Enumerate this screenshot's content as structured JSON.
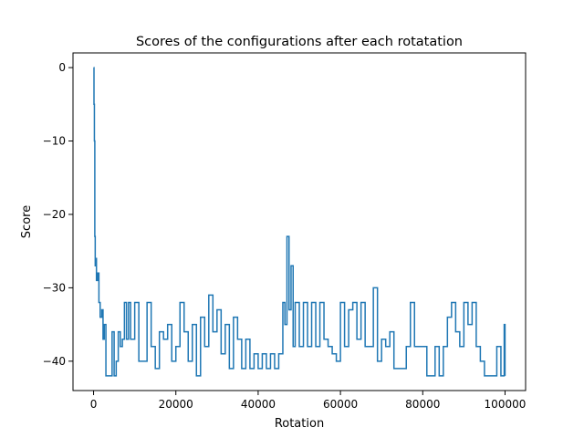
{
  "chart_data": {
    "type": "line",
    "title": "Scores of the configurations after each rotatation",
    "xlabel": "Rotation",
    "ylabel": "Score",
    "xlim": [
      -5000,
      105000
    ],
    "ylim": [
      -44,
      2
    ],
    "xticks": [
      0,
      20000,
      40000,
      60000,
      80000,
      100000
    ],
    "yticks": [
      0,
      -10,
      -20,
      -30,
      -40
    ],
    "grid": false,
    "legend": "none",
    "series": [
      {
        "color": "#1f77b4",
        "x": [
          0,
          100,
          200,
          300,
          400,
          500,
          700,
          1000,
          1300,
          1600,
          2000,
          2300,
          2600,
          3000,
          3500,
          4000,
          4500,
          5000,
          5500,
          6000,
          6500,
          7000,
          7500,
          8000,
          8500,
          9000,
          9500,
          10000,
          11000,
          12000,
          13000,
          14000,
          15000,
          16000,
          17000,
          18000,
          19000,
          20000,
          21000,
          22000,
          23000,
          24000,
          25000,
          26000,
          27000,
          28000,
          29000,
          30000,
          31000,
          32000,
          33000,
          34000,
          35000,
          36000,
          37000,
          38000,
          39000,
          40000,
          41000,
          42000,
          43000,
          44000,
          45000,
          46000,
          46500,
          47000,
          47500,
          48000,
          48500,
          49000,
          50000,
          51000,
          52000,
          53000,
          54000,
          55000,
          56000,
          57000,
          58000,
          59000,
          60000,
          61000,
          62000,
          63000,
          64000,
          65000,
          66000,
          67000,
          68000,
          69000,
          70000,
          71000,
          72000,
          73000,
          74000,
          75000,
          76000,
          77000,
          78000,
          79000,
          80000,
          81000,
          82000,
          83000,
          84000,
          85000,
          86000,
          87000,
          88000,
          89000,
          90000,
          91000,
          92000,
          93000,
          94000,
          95000,
          96000,
          97000,
          98000,
          99000,
          99800,
          100000
        ],
        "y": [
          0,
          -5,
          -10,
          -23,
          -27,
          -26,
          -29,
          -28,
          -32,
          -34,
          -33,
          -37,
          -35,
          -42,
          -42,
          -42,
          -36,
          -42,
          -40,
          -36,
          -38,
          -37,
          -32,
          -37,
          -32,
          -37,
          -37,
          -32,
          -40,
          -40,
          -32,
          -38,
          -41,
          -36,
          -37,
          -35,
          -40,
          -38,
          -32,
          -36,
          -40,
          -35,
          -42,
          -34,
          -38,
          -31,
          -36,
          -33,
          -39,
          -35,
          -41,
          -34,
          -37,
          -41,
          -37,
          -41,
          -39,
          -41,
          -39,
          -41,
          -39,
          -41,
          -39,
          -32,
          -35,
          -23,
          -33,
          -27,
          -38,
          -32,
          -38,
          -32,
          -38,
          -32,
          -38,
          -32,
          -37,
          -38,
          -39,
          -40,
          -32,
          -38,
          -33,
          -32,
          -37,
          -32,
          -38,
          -38,
          -30,
          -40,
          -37,
          -38,
          -36,
          -41,
          -41,
          -41,
          -38,
          -32,
          -38,
          -38,
          -38,
          -42,
          -42,
          -38,
          -42,
          -38,
          -34,
          -32,
          -36,
          -38,
          -32,
          -35,
          -32,
          -38,
          -40,
          -42,
          -42,
          -42,
          -38,
          -42,
          -35,
          -42
        ]
      }
    ]
  }
}
